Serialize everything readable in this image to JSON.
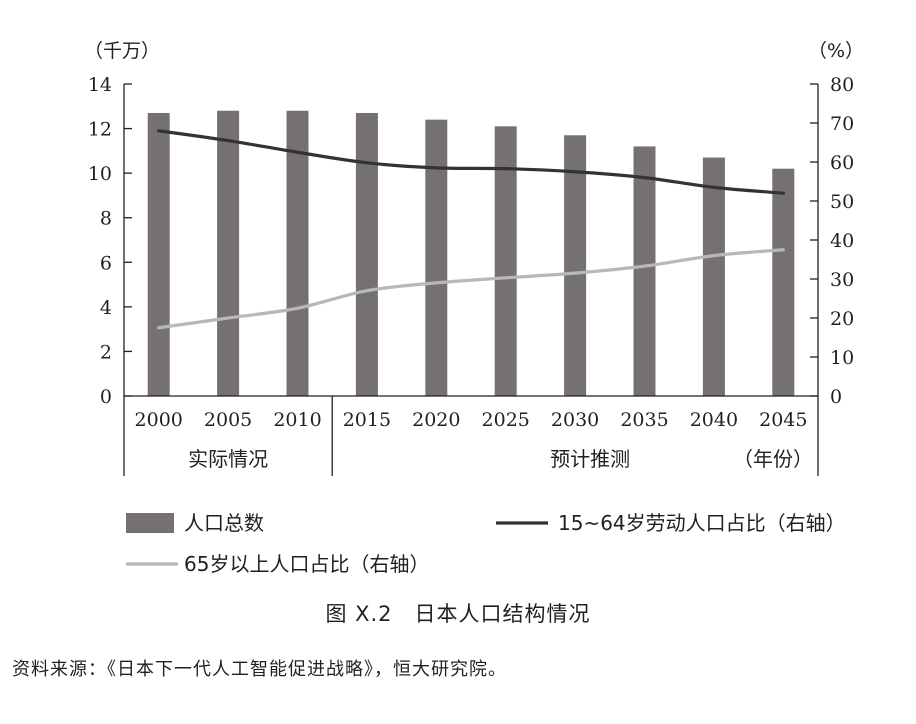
{
  "chart_data": {
    "type": "bar",
    "x": [
      "2000",
      "2005",
      "2010",
      "2015",
      "2020",
      "2025",
      "2030",
      "2035",
      "2040",
      "2045"
    ],
    "series": [
      {
        "name": "人口总数",
        "type": "bar",
        "axis": "left",
        "color": "#767171",
        "values": [
          12.7,
          12.8,
          12.8,
          12.7,
          12.4,
          12.1,
          11.7,
          11.2,
          10.7,
          10.2
        ]
      },
      {
        "name": "15~64岁劳动人口占比（右轴）",
        "type": "line",
        "axis": "right",
        "color": "#333333",
        "values": [
          68.0,
          65.5,
          62.5,
          59.8,
          58.5,
          58.3,
          57.5,
          56.0,
          53.5,
          52.0
        ]
      },
      {
        "name": "65岁以上人口占比（右轴）",
        "type": "line",
        "axis": "right",
        "color": "#b8b8b8",
        "values": [
          17.5,
          20.0,
          22.5,
          27.0,
          29.0,
          30.3,
          31.5,
          33.3,
          36.0,
          37.5
        ]
      }
    ],
    "y_left": {
      "unit": "（千万）",
      "ylim": [
        0,
        14
      ],
      "ticks": [
        "0",
        "2",
        "4",
        "6",
        "8",
        "10",
        "12",
        "14"
      ]
    },
    "y_right": {
      "unit": "（%）",
      "ylim": [
        0,
        80
      ],
      "ticks": [
        "0",
        "10",
        "20",
        "30",
        "40",
        "50",
        "60",
        "70",
        "80"
      ]
    },
    "periods": {
      "actual": "实际情况",
      "forecast": "预计推测",
      "year_unit": "（年份）"
    },
    "grid": false,
    "legend": "bottom"
  },
  "caption": "图 X.2　日本人口结构情况",
  "source": "资料来源：《日本下一代人工智能促进战略》，恒大研究院。"
}
